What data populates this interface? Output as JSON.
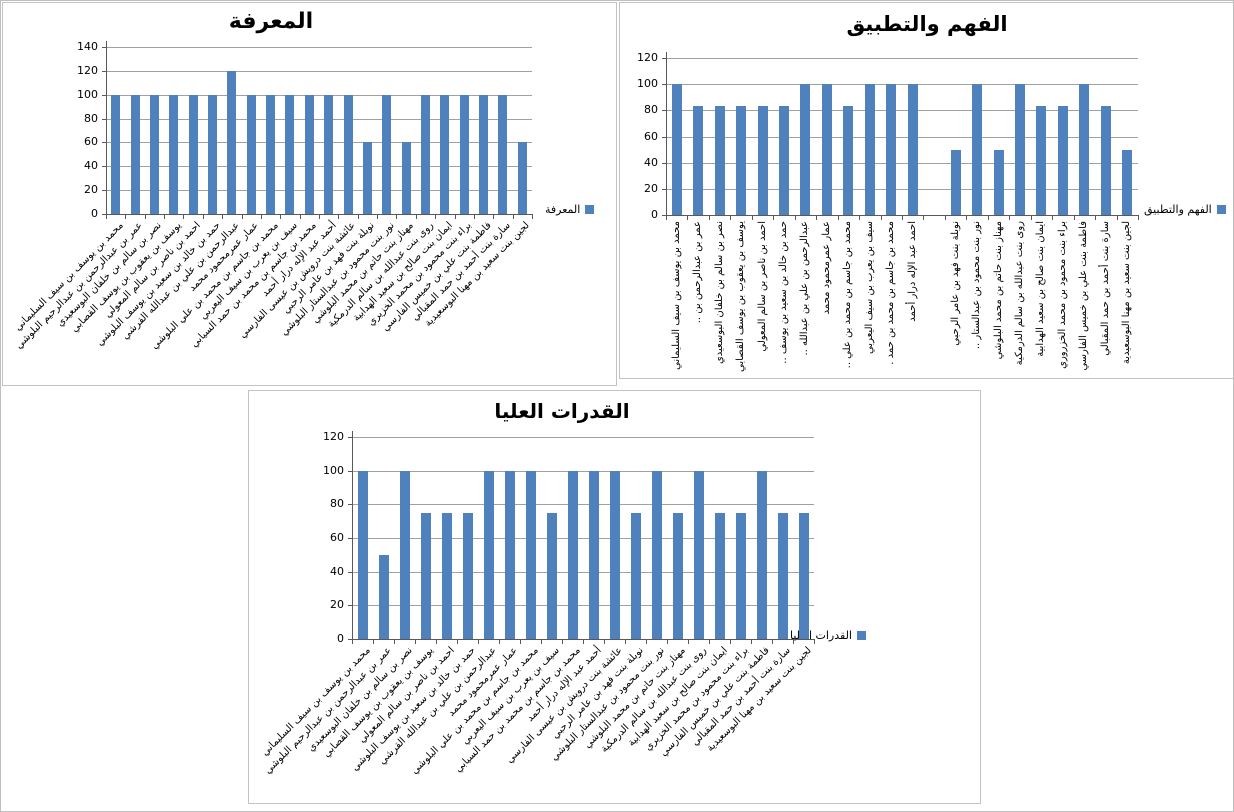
{
  "colors": {
    "bar": "#4F81BD",
    "gridline": "#A0A0A0",
    "axis": "#595959",
    "panel_border": "#C3C3C3",
    "background": "#FFFFFF"
  },
  "chart_data": [
    {
      "type": "bar",
      "title": "المعرفة",
      "legend_label": "المعرفة",
      "legend_position": "right",
      "grid": true,
      "ylim": [
        0,
        140
      ],
      "ytick_step": 20,
      "yticks": [
        0,
        20,
        40,
        60,
        80,
        100,
        120,
        140
      ],
      "bar_color": "#4F81BD",
      "categories": [
        "محمد بن يوسف بن سيف السليماني",
        "عمر بن عبدالرحمن بن عبدالرحيم البلوشي",
        "نصر بن سالم بن خلفان البوسعيدي",
        "يوسف بن يعقوب بن يوسف القصابي",
        "احمد بن ناصر بن سالم المعولي",
        "حمد بن خالد بن سعيد بن يوسف البلوشي",
        "عبدالرحمن بن علي بن عبدالله القرشي",
        "عمار عمرمحمود محمد",
        "محمد بن جاسم بن محمد بن علي البلوشي",
        "سيف بن يعرب بن سيف اليعربي",
        "محمد بن جاسم بن محمد بن حمد السيابي",
        "أحمد عبد الإله درار أحمد",
        "عائشة بنت درويش بن عيسى الفارسي",
        "نوبلة بنت فهد بن عامر الرحبي",
        "نور بنت محمود بن عبدالستار البلوشي",
        "مهناز بنت حاتم بن محمد البلوشي",
        "روى بنت عبدالله بن سالم الدرمكية",
        "ايمان بنت صالح بن سعيد الهدابية",
        "براء بنت محمود بن محمد الخزيري",
        "فاطمة بنت علي بن خميس الفارسي",
        "سارة بنت أحمد بن حمد المقبالي",
        "لجين بنت سعيد بن مهنا البوسعيدية"
      ],
      "values": [
        100,
        100,
        100,
        100,
        100,
        100,
        120,
        100,
        100,
        100,
        100,
        100,
        100,
        60,
        100,
        60,
        100,
        100,
        100,
        100,
        100,
        60
      ]
    },
    {
      "type": "bar",
      "title": "الفهم والتطبيق",
      "legend_label": "الفهم والتطبيق",
      "legend_position": "right",
      "grid": true,
      "ylim": [
        0,
        120
      ],
      "ytick_step": 20,
      "yticks": [
        0,
        20,
        40,
        60,
        80,
        100,
        120
      ],
      "bar_color": "#4F81BD",
      "categories": [
        "محمد بن يوسف بن سيف السليماني",
        "عمر بن عبدالرحمن بن ..",
        "نصر بن سالم بن خلفان البوسعيدي",
        "يوسف بن يعقوب بن يوسف القصابي",
        "احمد بن ناصر بن سالم المعولي",
        "حمد بن خالد بن سعيد بن يوسف ..",
        "عبدالرحمن بن علي بن عبدالله ..",
        "عمار عمرمحمود محمد",
        "محمد بن جاسم بن محمد بن علي ..",
        "سيف بن يعرب بن سيف اليعربي",
        "محمد بن جاسم بن محمد بن حمد .",
        "احمد عبد الإله درار أحمد",
        "",
        "نوبلة بنت فهد بن عامر الرحبي",
        "نور بنت محمود بن عبدالستار ..",
        "مهناز بنت حاتم بن محمد البلوشي",
        "روى بنت عبدالله بن سالم الدرمكية",
        "ايمان بنت صالح بن سعيد الهدابية",
        "براء بنت محمود بن محمد الخزروري",
        "فاطمة بنت علي بن خميس الفارسي",
        "سارة بنت أحمد بن حمد المقبالي",
        "لجين بنت سعيد بن مهنا البوسعيدية"
      ],
      "values": [
        100,
        83.33,
        83.33,
        83.33,
        83.33,
        83.33,
        100,
        100,
        83.33,
        100,
        100,
        100,
        null,
        50,
        100,
        50,
        100,
        83.33,
        83.33,
        100,
        83.33,
        50
      ]
    },
    {
      "type": "bar",
      "title": "القدرات العليا",
      "legend_label": "القدرات العليا",
      "legend_position": "right",
      "grid": true,
      "ylim": [
        0,
        120
      ],
      "ytick_step": 20,
      "yticks": [
        0,
        20,
        40,
        60,
        80,
        100,
        120
      ],
      "bar_color": "#4F81BD",
      "categories": [
        "محمد بن يوسف بن سيف السليماني",
        "عمر بن عبدالرحمن بن عبدالرحيم البلوشي",
        "نصر بن سالم بن خلفان البوسعيدي",
        "يوسف بن يعقوب بن يوسف القصابي",
        "احمد بن ناصر بن سالم المعولي",
        "حمد بن خالد بن سعيد بن يوسف البلوشي",
        "عبدالرحمن بن علي بن عبدالله القرشي",
        "عمار عمرمحمود محمد",
        "محمد بن جاسم بن محمد بن علي البلوشي",
        "سيف بن يعرب بن سيف اليعربي",
        "محمد بن جاسم بن محمد بن حمد السيابي",
        "أحمد عبد الإله درار أحمد",
        "عائشة بنت درويش بن عيسى الفارسي",
        "نوبلة بنت فهد بن عامر الرحبي",
        "نور بنت محمود بن عبدالستار البلوشي",
        "مهناز بنت حاتم بن محمد البلوشي",
        "روى بنت عبدالله بن سالم الدرمكية",
        "ايمان بنت صالح بن سعيد الهدابية",
        "براء بنت محمود بن محمد الخزيري",
        "فاطمة بنت علي بن خميس الفارسي",
        "سارة بنت أحمد بن حمد المقبالي",
        "لجين بنت سعيد بن مهنا البوسعيدية"
      ],
      "values": [
        100,
        50,
        100,
        75,
        75,
        75,
        100,
        100,
        100,
        75,
        100,
        100,
        100,
        75,
        100,
        75,
        100,
        75,
        75,
        100,
        75,
        75
      ]
    }
  ]
}
